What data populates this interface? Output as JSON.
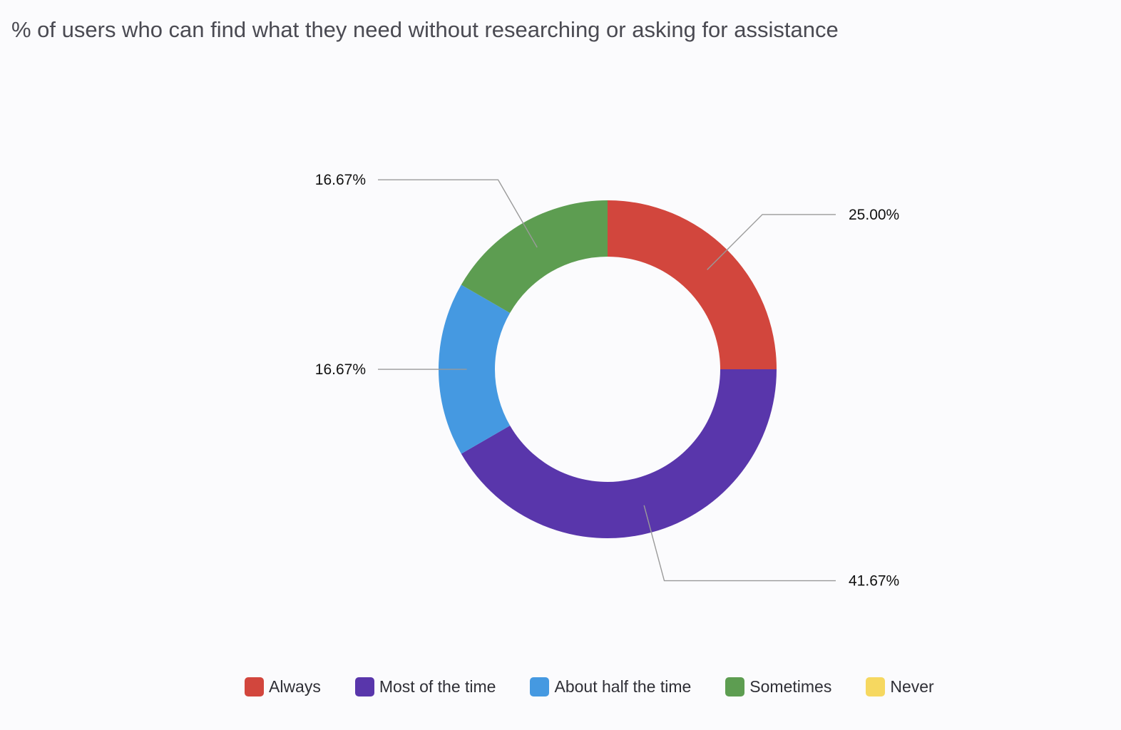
{
  "chart_data": {
    "type": "pie",
    "variant": "donut",
    "title": "% of users who can find what they need without researching or asking for assistance",
    "categories": [
      "Always",
      "Most of the time",
      "About half the time",
      "Sometimes",
      "Never"
    ],
    "values": [
      25.0,
      41.67,
      16.67,
      16.67,
      0
    ],
    "value_labels": [
      "25.00%",
      "41.67%",
      "16.67%",
      "16.67%",
      ""
    ],
    "colors": [
      "#d2463d",
      "#5936ab",
      "#4599e1",
      "#5d9d51",
      "#f6d860"
    ],
    "legend_position": "bottom",
    "grid": false
  }
}
